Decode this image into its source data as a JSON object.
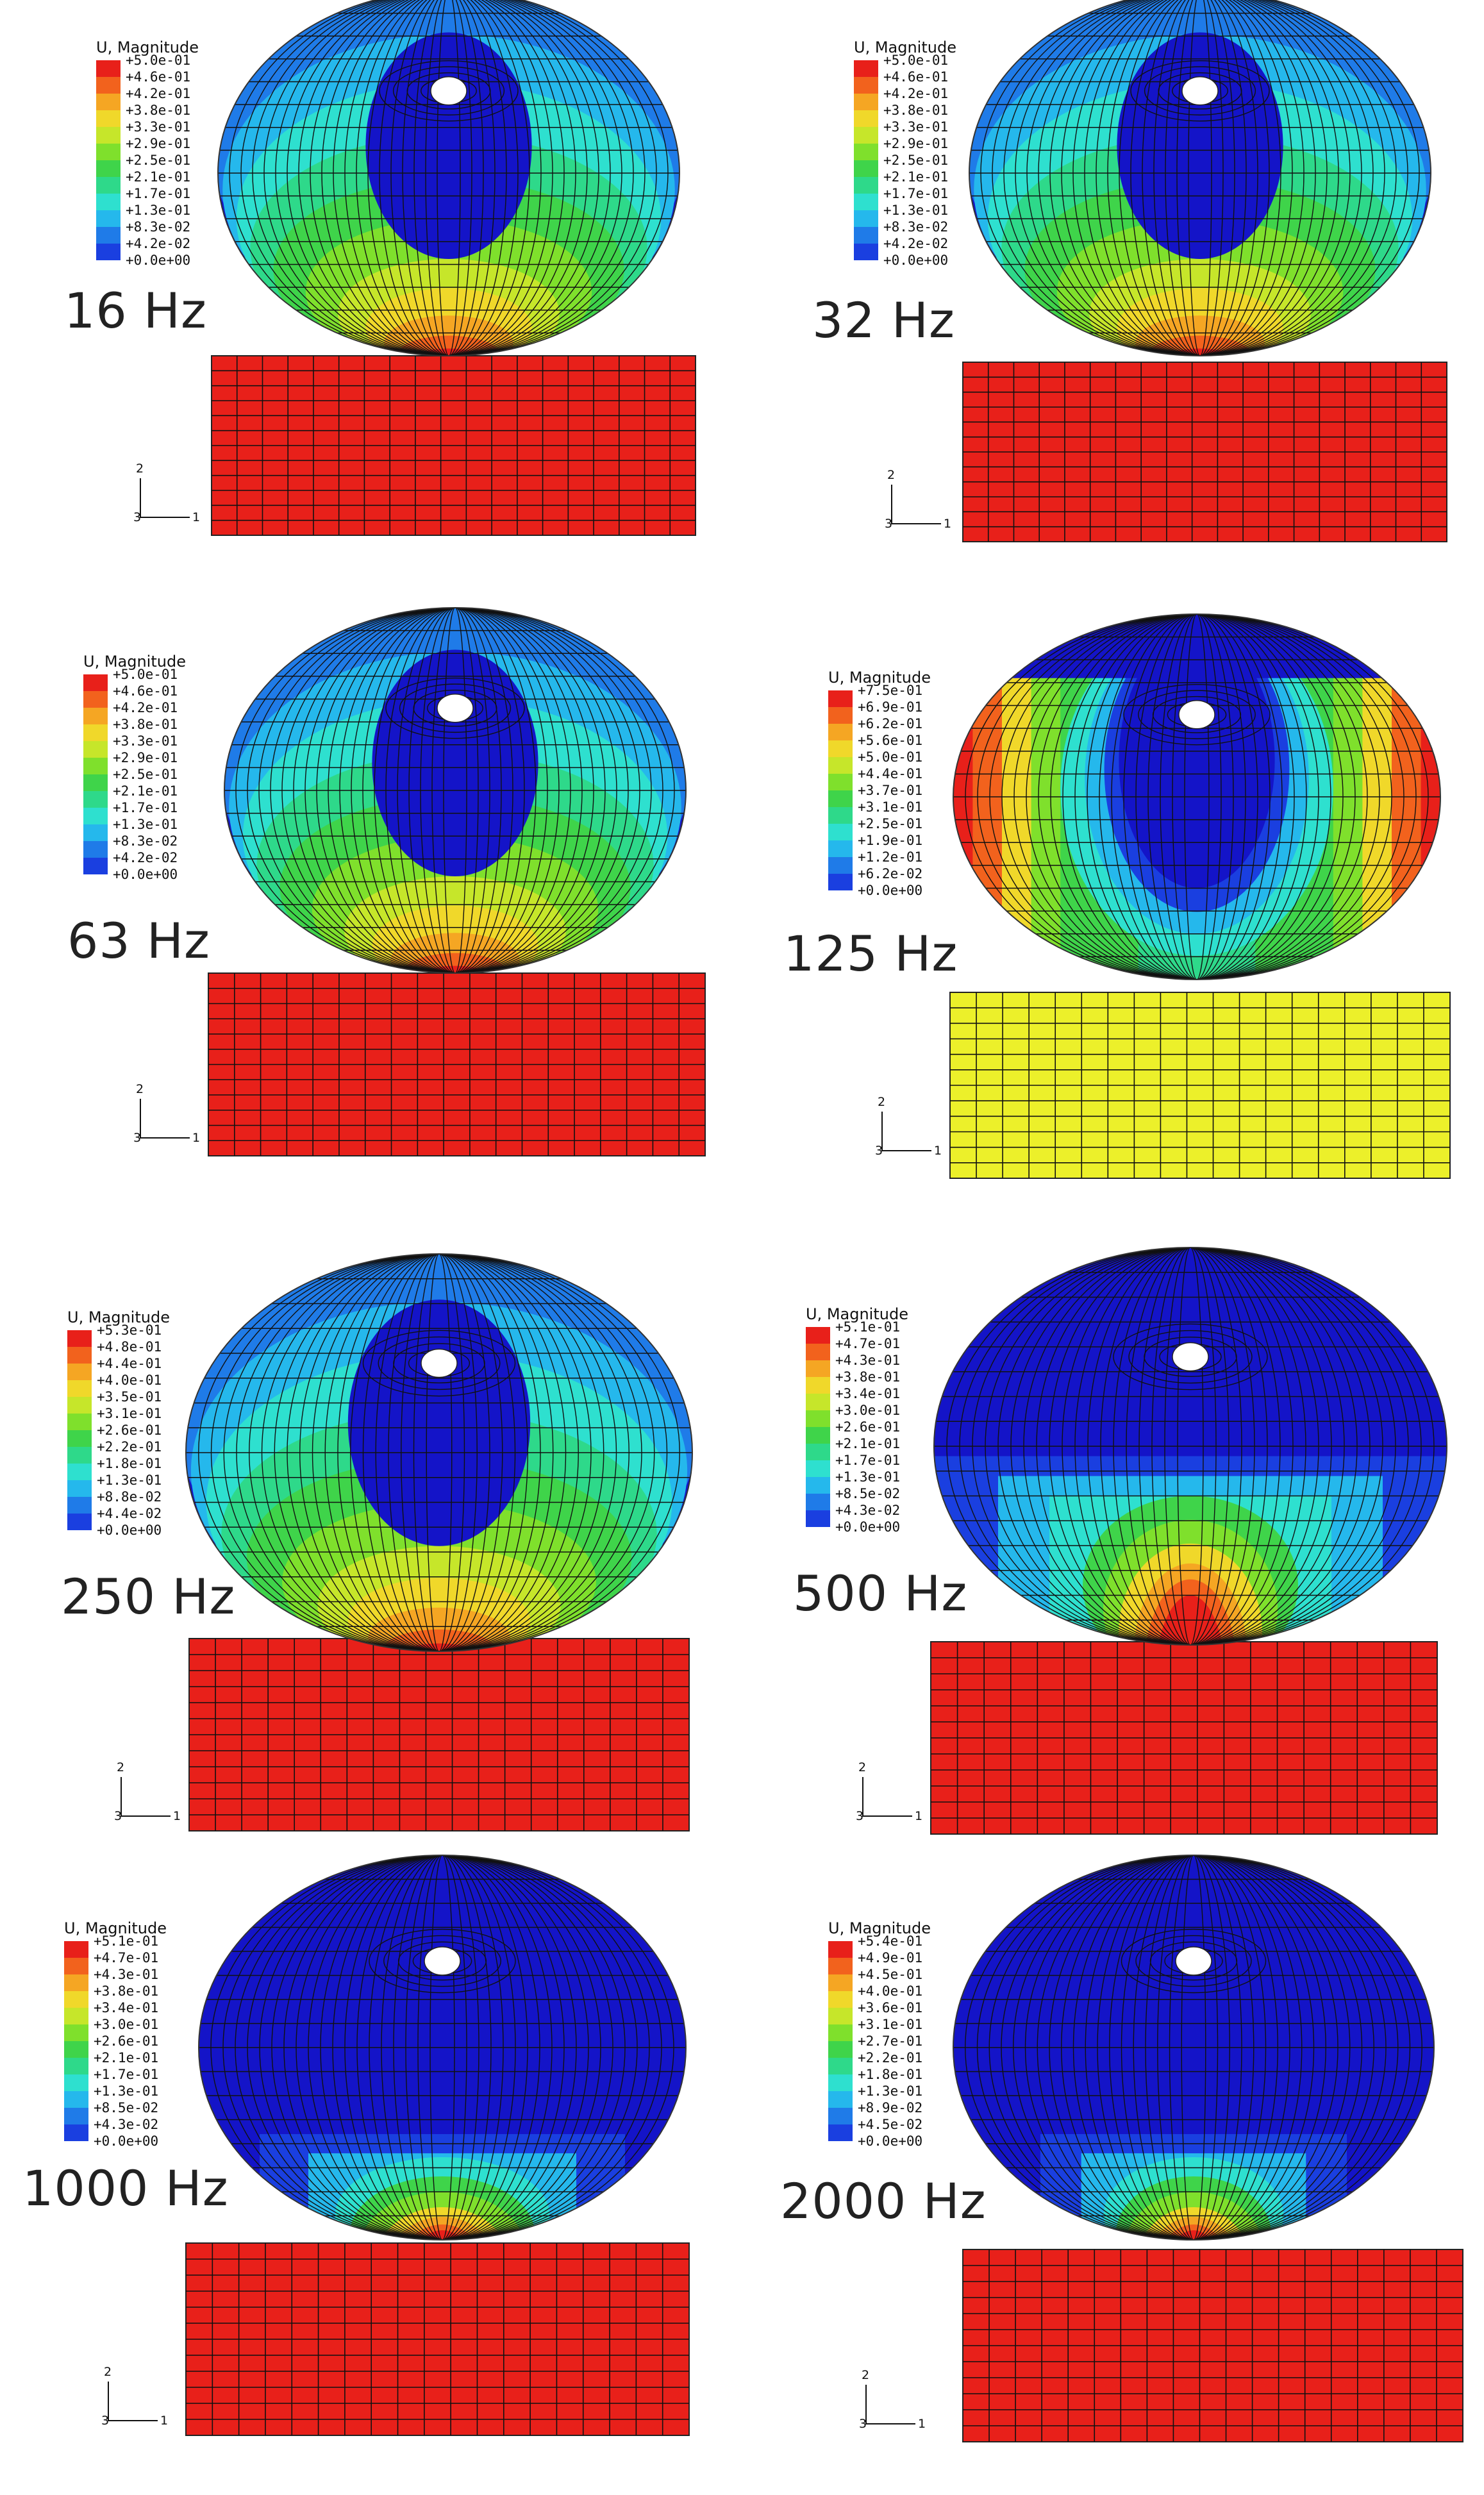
{
  "figure": {
    "panels": [
      {
        "frequency": "16 Hz",
        "legend_title": "U, Magnitude",
        "legend_values": [
          "+5.0e-01",
          "+4.6e-01",
          "+4.2e-01",
          "+3.8e-01",
          "+3.3e-01",
          "+2.9e-01",
          "+2.5e-01",
          "+2.1e-01",
          "+1.7e-01",
          "+1.3e-01",
          "+8.3e-02",
          "+4.2e-02",
          "+0.0e+00"
        ],
        "block_color": "#e8201a",
        "pattern": "standard",
        "axis_labels": {
          "y": "2",
          "z": "3",
          "x": "1"
        }
      },
      {
        "frequency": "32 Hz",
        "legend_title": "U, Magnitude",
        "legend_values": [
          "+5.0e-01",
          "+4.6e-01",
          "+4.2e-01",
          "+3.8e-01",
          "+3.3e-01",
          "+2.9e-01",
          "+2.5e-01",
          "+2.1e-01",
          "+1.7e-01",
          "+1.3e-01",
          "+8.3e-02",
          "+4.2e-02",
          "+0.0e+00"
        ],
        "block_color": "#e8201a",
        "pattern": "standard",
        "axis_labels": {
          "y": "2",
          "z": "3",
          "x": "1"
        }
      },
      {
        "frequency": "63 Hz",
        "legend_title": "U, Magnitude",
        "legend_values": [
          "+5.0e-01",
          "+4.6e-01",
          "+4.2e-01",
          "+3.8e-01",
          "+3.3e-01",
          "+2.9e-01",
          "+2.5e-01",
          "+2.1e-01",
          "+1.7e-01",
          "+1.3e-01",
          "+8.3e-02",
          "+4.2e-02",
          "+0.0e+00"
        ],
        "block_color": "#e8201a",
        "pattern": "standard",
        "axis_labels": {
          "y": "2",
          "z": "3",
          "x": "1"
        }
      },
      {
        "frequency": "125 Hz",
        "legend_title": "U, Magnitude",
        "legend_values": [
          "+7.5e-01",
          "+6.9e-01",
          "+6.2e-01",
          "+5.6e-01",
          "+5.0e-01",
          "+4.4e-01",
          "+3.7e-01",
          "+3.1e-01",
          "+2.5e-01",
          "+1.9e-01",
          "+1.2e-01",
          "+6.2e-02",
          "+0.0e+00"
        ],
        "block_color": "#ecf02a",
        "pattern": "sides",
        "axis_labels": {
          "y": "2",
          "z": "3",
          "x": "1"
        }
      },
      {
        "frequency": "250 Hz",
        "legend_title": "U, Magnitude",
        "legend_values": [
          "+5.3e-01",
          "+4.8e-01",
          "+4.4e-01",
          "+4.0e-01",
          "+3.5e-01",
          "+3.1e-01",
          "+2.6e-01",
          "+2.2e-01",
          "+1.8e-01",
          "+1.3e-01",
          "+8.8e-02",
          "+4.4e-02",
          "+0.0e+00"
        ],
        "block_color": "#e8201a",
        "pattern": "standard",
        "axis_labels": {
          "y": "2",
          "z": "3",
          "x": "1"
        }
      },
      {
        "frequency": "500 Hz",
        "legend_title": "U, Magnitude",
        "legend_values": [
          "+5.1e-01",
          "+4.7e-01",
          "+4.3e-01",
          "+3.8e-01",
          "+3.4e-01",
          "+3.0e-01",
          "+2.6e-01",
          "+2.1e-01",
          "+1.7e-01",
          "+1.3e-01",
          "+8.5e-02",
          "+4.3e-02",
          "+0.0e+00"
        ],
        "block_color": "#e8201a",
        "pattern": "lower",
        "axis_labels": {
          "y": "2",
          "z": "3",
          "x": "1"
        }
      },
      {
        "frequency": "1000 Hz",
        "legend_title": "U, Magnitude",
        "legend_values": [
          "+5.1e-01",
          "+4.7e-01",
          "+4.3e-01",
          "+3.8e-01",
          "+3.4e-01",
          "+3.0e-01",
          "+2.6e-01",
          "+2.1e-01",
          "+1.7e-01",
          "+1.3e-01",
          "+8.5e-02",
          "+4.3e-02",
          "+0.0e+00"
        ],
        "block_color": "#e8201a",
        "pattern": "bottom",
        "axis_labels": {
          "y": "2",
          "z": "3",
          "x": "1"
        }
      },
      {
        "frequency": "2000 Hz",
        "legend_title": "U, Magnitude",
        "legend_values": [
          "+5.4e-01",
          "+4.9e-01",
          "+4.5e-01",
          "+4.0e-01",
          "+3.6e-01",
          "+3.1e-01",
          "+2.7e-01",
          "+2.2e-01",
          "+1.8e-01",
          "+1.3e-01",
          "+8.9e-02",
          "+4.5e-02",
          "+0.0e+00"
        ],
        "block_color": "#e8201a",
        "pattern": "bottom-small",
        "axis_labels": {
          "y": "2",
          "z": "3",
          "x": "1"
        }
      }
    ],
    "colormap": [
      "#e8201a",
      "#f2621d",
      "#f5a623",
      "#f0d82a",
      "#c6e62a",
      "#7fe02c",
      "#3fd44a",
      "#2ed98a",
      "#2ee0cf",
      "#25b8ec",
      "#1f7be8",
      "#1a3fe0",
      "#1414c8"
    ]
  }
}
